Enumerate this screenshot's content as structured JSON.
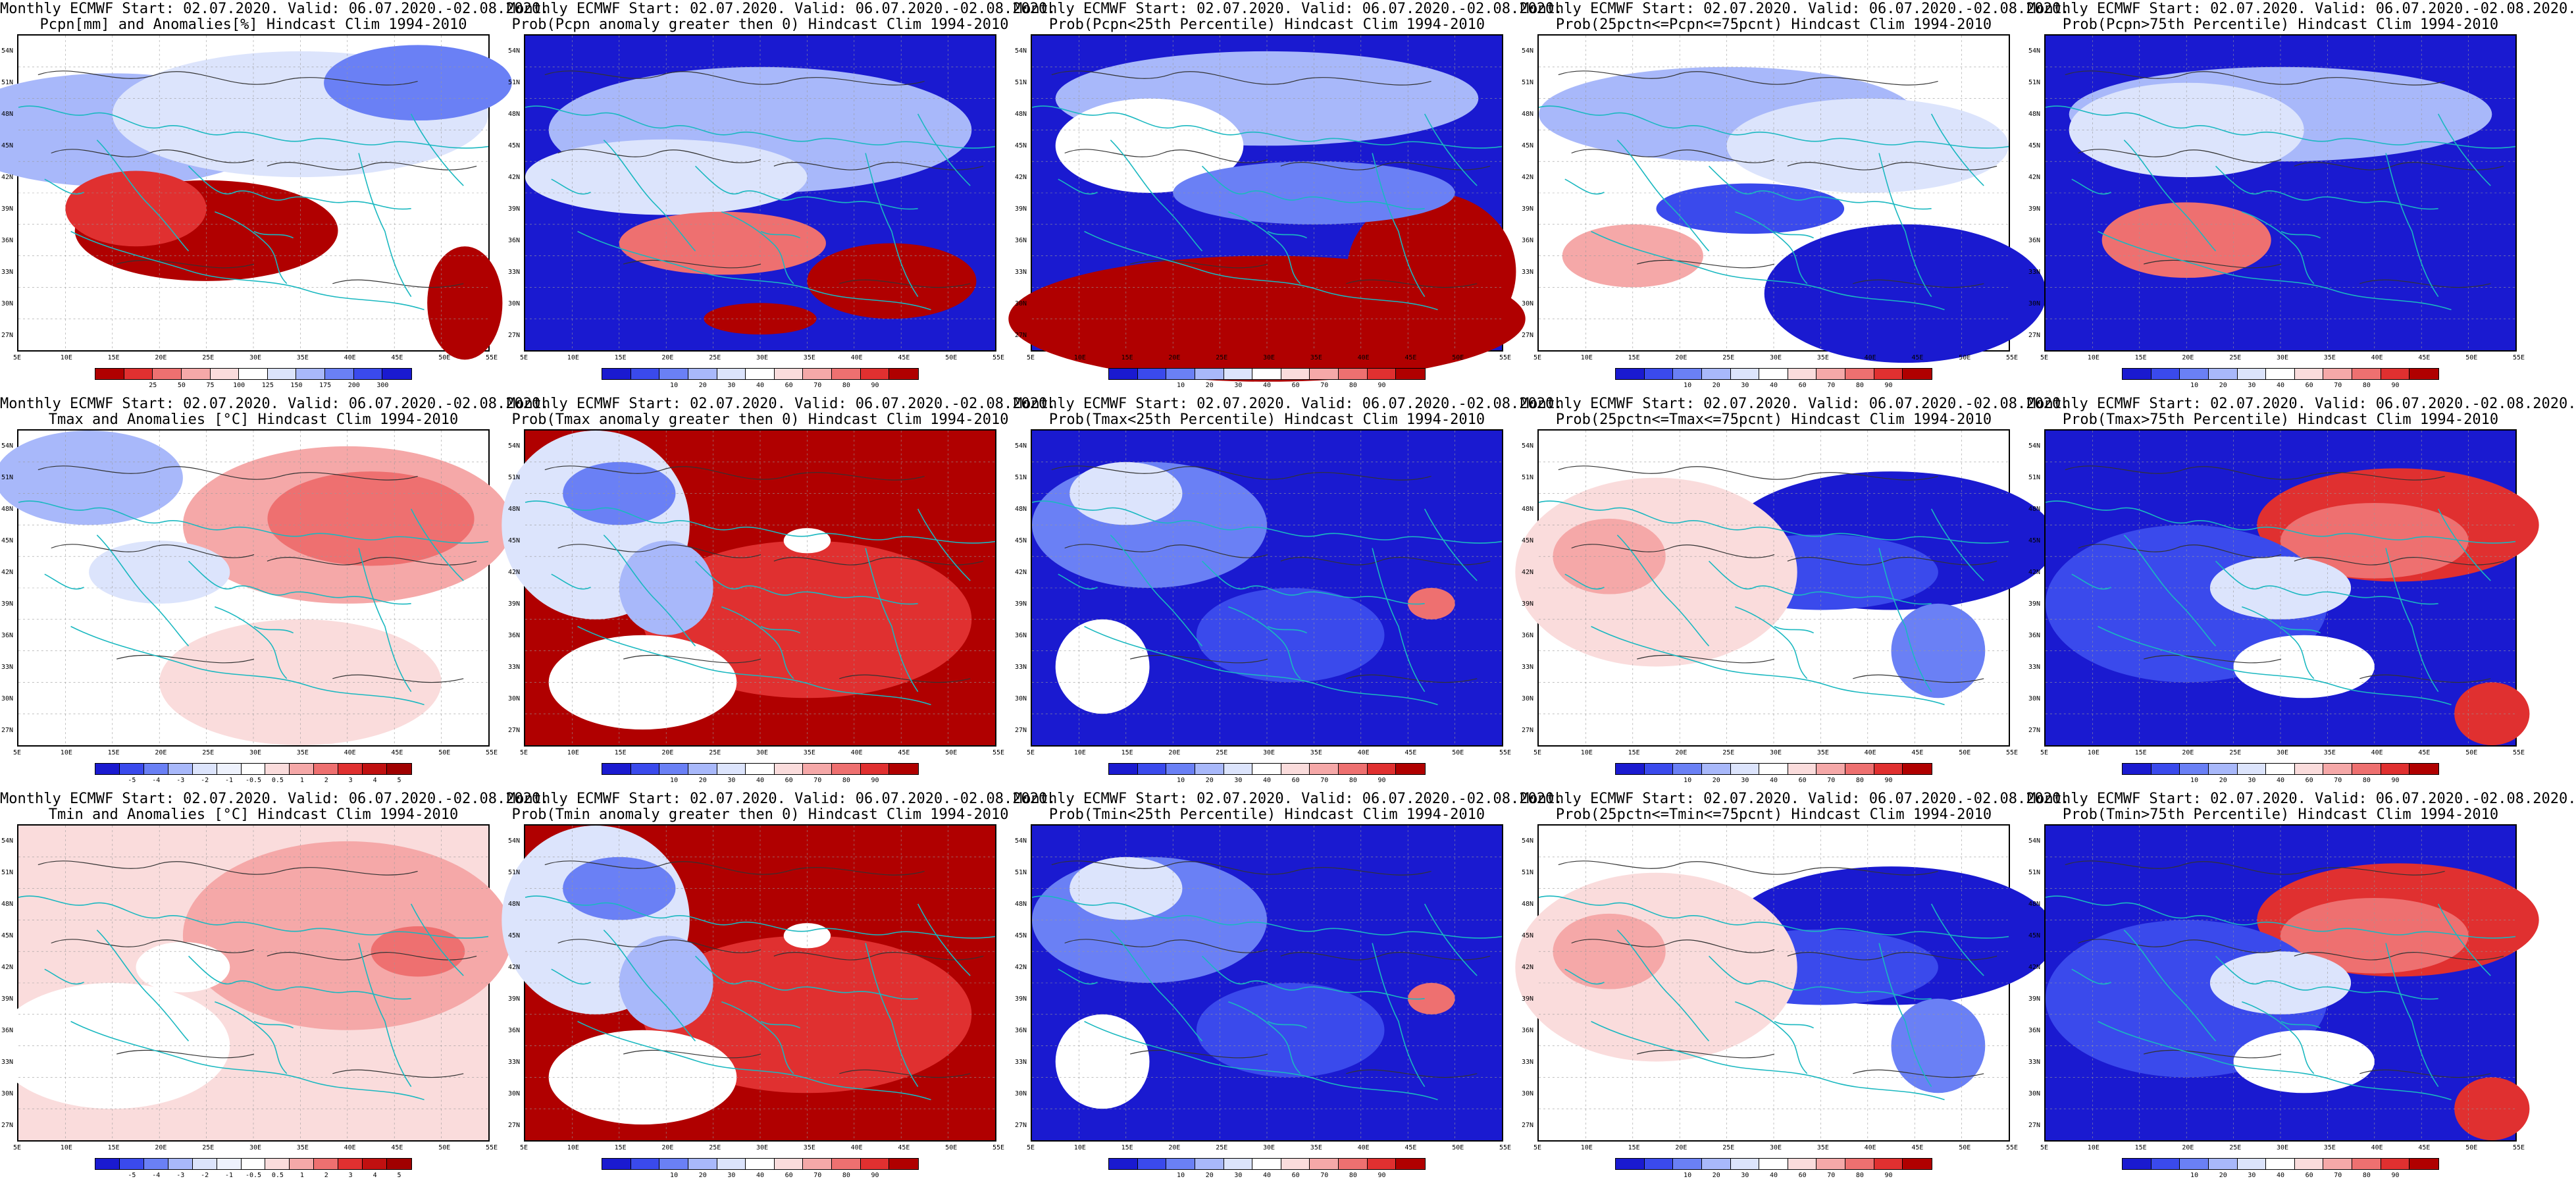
{
  "panels": [
    {
      "line1": "Monthly ECMWF Start: 02.07.2020. Valid: 06.07.2020.-02.08.2020.",
      "line2": "Pcpn[mm] and Anomalies[%] Hindcast Clim 1994-2010",
      "theme": "pcpn_anom",
      "bar": "anom_pct"
    },
    {
      "line1": "Monthly ECMWF Start: 02.07.2020. Valid: 06.07.2020.-02.08.2020.",
      "line2": "Prob(Pcpn anomaly greater then 0) Hindcast Clim 1994-2010",
      "theme": "pcpn_pos",
      "bar": "prob"
    },
    {
      "line1": "Monthly ECMWF Start: 02.07.2020. Valid: 06.07.2020.-02.08.2020.",
      "line2": "Prob(Pcpn<25th Percentile) Hindcast Clim 1994-2010",
      "theme": "pcpn_low",
      "bar": "prob"
    },
    {
      "line1": "Monthly ECMWF Start: 02.07.2020. Valid: 06.07.2020.-02.08.2020.",
      "line2": "Prob(25pctn<=Pcpn<=75pcnt) Hindcast Clim 1994-2010",
      "theme": "pcpn_mid",
      "bar": "prob"
    },
    {
      "line1": "Monthly ECMWF Start: 02.07.2020. Valid: 06.07.2020.-02.08.2020.",
      "line2": "Prob(Pcpn>75th Percentile) Hindcast Clim 1994-2010",
      "theme": "pcpn_high",
      "bar": "prob"
    },
    {
      "line1": "Monthly ECMWF Start: 02.07.2020. Valid: 06.07.2020.-02.08.2020.",
      "line2": "Tmax and Anomalies [°C] Hindcast Clim 1994-2010",
      "theme": "t_anom",
      "bar": "anom_c"
    },
    {
      "line1": "Monthly ECMWF Start: 02.07.2020. Valid: 06.07.2020.-02.08.2020.",
      "line2": "Prob(Tmax anomaly greater then 0) Hindcast Clim 1994-2010",
      "theme": "t_pos",
      "bar": "prob"
    },
    {
      "line1": "Monthly ECMWF Start: 02.07.2020. Valid: 06.07.2020.-02.08.2020.",
      "line2": "Prob(Tmax<25th Percentile) Hindcast Clim 1994-2010",
      "theme": "t_low",
      "bar": "prob"
    },
    {
      "line1": "Monthly ECMWF Start: 02.07.2020. Valid: 06.07.2020.-02.08.2020.",
      "line2": "Prob(25pctn<=Tmax<=75pcnt) Hindcast Clim 1994-2010",
      "theme": "t_mid",
      "bar": "prob"
    },
    {
      "line1": "Monthly ECMWF Start: 02.07.2020. Valid: 06.07.2020.-02.08.2020.",
      "line2": "Prob(Tmax>75th Percentile) Hindcast Clim 1994-2010",
      "theme": "t_high",
      "bar": "prob"
    },
    {
      "line1": "Monthly ECMWF Start: 02.07.2020. Valid: 06.07.2020.-02.08.2020.",
      "line2": "Tmin and Anomalies [°C] Hindcast Clim 1994-2010",
      "theme": "tmin_anom",
      "bar": "anom_c"
    },
    {
      "line1": "Monthly ECMWF Start: 02.07.2020. Valid: 06.07.2020.-02.08.2020.",
      "line2": "Prob(Tmin anomaly greater then 0) Hindcast Clim 1994-2010",
      "theme": "t_pos",
      "bar": "prob"
    },
    {
      "line1": "Monthly ECMWF Start: 02.07.2020. Valid: 06.07.2020.-02.08.2020.",
      "line2": "Prob(Tmin<25th Percentile) Hindcast Clim 1994-2010",
      "theme": "t_low",
      "bar": "prob"
    },
    {
      "line1": "Monthly ECMWF Start: 02.07.2020. Valid: 06.07.2020.-02.08.2020.",
      "line2": "Prob(25pctn<=Tmin<=75pcnt) Hindcast Clim 1994-2010",
      "theme": "t_mid",
      "bar": "prob"
    },
    {
      "line1": "Monthly ECMWF Start: 02.07.2020. Valid: 06.07.2020.-02.08.2020.",
      "line2": "Prob(Tmin>75th Percentile) Hindcast Clim 1994-2010",
      "theme": "t_high",
      "bar": "prob"
    }
  ],
  "latitudes": [
    "54N",
    "51N",
    "48N",
    "45N",
    "42N",
    "39N",
    "36N",
    "33N",
    "30N",
    "27N"
  ],
  "longitudes": [
    "5E",
    "10E",
    "15E",
    "20E",
    "25E",
    "30E",
    "35E",
    "40E",
    "45E",
    "50E",
    "55E"
  ],
  "colorbars": {
    "prob": {
      "labels": [
        "10",
        "20",
        "30",
        "40",
        "60",
        "70",
        "80",
        "90"
      ],
      "colors": [
        "#1a1ad0",
        "#3a4aec",
        "#6a80f5",
        "#a8b8fa",
        "#dce4fc",
        "#ffffff",
        "#fadcdc",
        "#f5a8a8",
        "#ee7070",
        "#e03030",
        "#b00000"
      ]
    },
    "anom_pct": {
      "labels": [
        "25",
        "50",
        "75",
        "100",
        "125",
        "150",
        "175",
        "200",
        "300"
      ],
      "colors": [
        "#b00000",
        "#e03030",
        "#ee7070",
        "#f5a8a8",
        "#fadcdc",
        "#ffffff",
        "#dce4fc",
        "#a8b8fa",
        "#6a80f5",
        "#3a4aec",
        "#1a1ad0"
      ]
    },
    "anom_c": {
      "labels": [
        "-5",
        "-4",
        "-3",
        "-2",
        "-1",
        "-0.5",
        "0.5",
        "1",
        "2",
        "3",
        "4",
        "5"
      ],
      "colors": [
        "#1a1ad0",
        "#3a4aec",
        "#6a80f5",
        "#a8b8fa",
        "#dce4fc",
        "#eef2fd",
        "#ffffff",
        "#fadcdc",
        "#f5a8a8",
        "#ee7070",
        "#e03030",
        "#c01010",
        "#a00000"
      ]
    }
  },
  "colors": {
    "coast": "#1ab8c0",
    "contour": "#333333",
    "frame": "#000000"
  }
}
